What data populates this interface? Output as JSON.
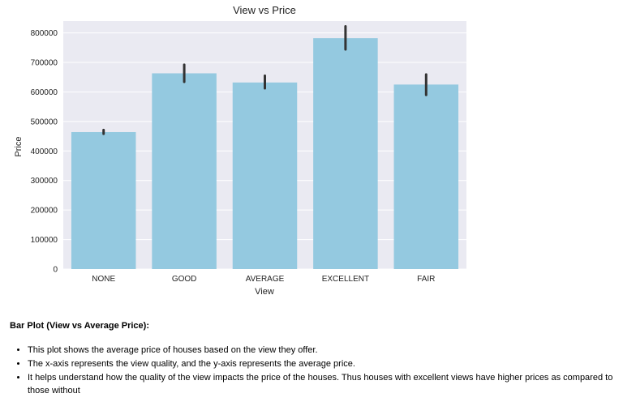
{
  "chart_data": {
    "type": "bar",
    "title": "View vs Price",
    "xlabel": "View",
    "ylabel": "Price",
    "categories": [
      "NONE",
      "GOOD",
      "AVERAGE",
      "EXCELLENT",
      "FAIR"
    ],
    "values": [
      464000,
      663000,
      632000,
      782000,
      625000
    ],
    "error_low": [
      458000,
      634000,
      612000,
      744000,
      590000
    ],
    "error_high": [
      471000,
      692000,
      655000,
      822000,
      659000
    ],
    "yticks": [
      0,
      100000,
      200000,
      300000,
      400000,
      500000,
      600000,
      700000,
      800000
    ],
    "ylim": [
      0,
      840000
    ],
    "grid": true,
    "colors": {
      "bar": "#94c9e0",
      "error": "#333333",
      "background": "#eaeaf2",
      "grid": "#ffffff"
    }
  },
  "description": {
    "heading": "Bar Plot (View vs Average Price):",
    "bullets": [
      "This plot shows the average price of houses based on the view they offer.",
      "The x-axis represents the view quality, and the y-axis represents the average price.",
      "It helps understand how the quality of the view impacts the price of the houses. Thus houses with excellent views have higher prices as compared to those without"
    ]
  }
}
